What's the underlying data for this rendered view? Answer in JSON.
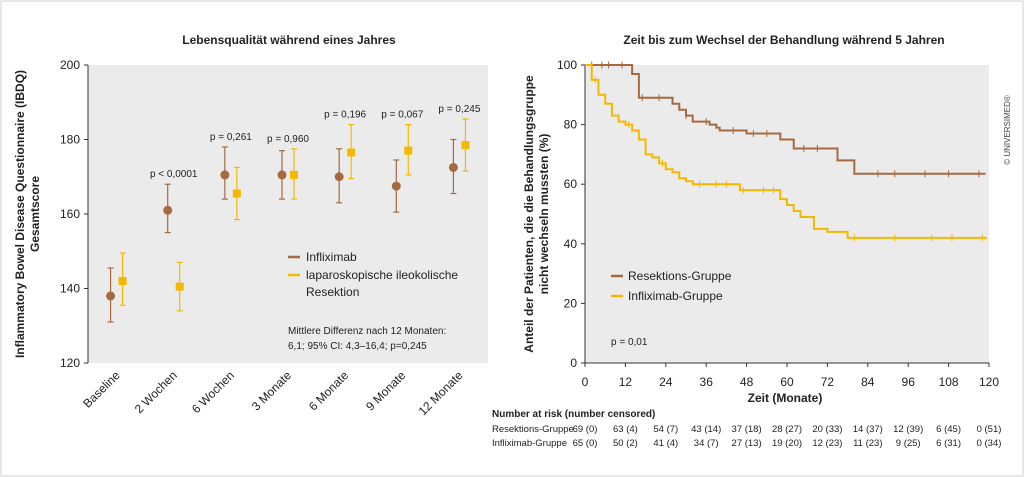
{
  "copyright": "© UNIVERSIMED®",
  "colors": {
    "infliximab": "#a56a3f",
    "resection": "#f5b800",
    "panel_bg": "#ebebeb"
  },
  "chart_data": [
    {
      "type": "scatter",
      "title": "Lebensqualität während eines Jahres",
      "ylabel_line1": "Inflammatory Bowel Disease Questionnaire (IBDQ)",
      "ylabel_line2": "Gesamtscore",
      "ylim": [
        120,
        200
      ],
      "yticks": [
        "120",
        "140",
        "160",
        "180",
        "200"
      ],
      "categories": [
        "Baseline",
        "2 Wochen",
        "6 Wochen",
        "3 Monate",
        "6 Monate",
        "9 Monate",
        "12 Monate"
      ],
      "p_values": [
        "",
        "p < 0,0001",
        "p = 0,261",
        "p = 0,960",
        "p = 0,196",
        "p = 0,067",
        "p = 0,245"
      ],
      "series": [
        {
          "name": "Infliximab",
          "color": "#a56a3f",
          "marker": "circle",
          "values": [
            138,
            161,
            170.5,
            170.5,
            170,
            167.5,
            172.5
          ],
          "lower": [
            131,
            155,
            164,
            164,
            163,
            160.5,
            165.5
          ],
          "upper": [
            145.5,
            168,
            178,
            177,
            177.5,
            174.5,
            180
          ]
        },
        {
          "name": "laparoskopische ileokolische Resektion",
          "name_line1": "laparoskopische ileokolische",
          "name_line2": "Resektion",
          "color": "#f5b800",
          "marker": "square",
          "values": [
            142,
            140.5,
            165.5,
            170.5,
            176.5,
            177,
            178.5
          ],
          "lower": [
            135.5,
            134,
            158.5,
            164,
            169.5,
            170.5,
            171.5
          ],
          "upper": [
            149.5,
            147,
            172.5,
            177.5,
            184,
            184,
            185.5
          ]
        }
      ],
      "note_line1": "Mittlere Differenz nach 12 Monaten:",
      "note_line2": "6,1; 95% CI: 4,3–16,4; p=0,245"
    },
    {
      "type": "line",
      "title": "Zeit bis zum Wechsel der Behandlung während 5 Jahren",
      "ylabel_line1": "Anteil der Patienten, die die Behandlungsgruppe",
      "ylabel_line2": "nicht wechseln mussten (%)",
      "xlabel": "Zeit (Monate)",
      "xlim": [
        0,
        120
      ],
      "ylim": [
        0,
        100
      ],
      "xticks": [
        "0",
        "12",
        "24",
        "36",
        "48",
        "60",
        "72",
        "84",
        "96",
        "108",
        "120"
      ],
      "yticks": [
        "0",
        "20",
        "40",
        "60",
        "80",
        "100"
      ],
      "annotation": "p = 0,01",
      "series": [
        {
          "name": "Resektions-Gruppe",
          "color": "#a56a3f",
          "x": [
            0,
            14,
            16,
            26,
            28,
            30,
            32,
            37,
            39,
            40,
            48,
            58,
            62,
            72,
            75,
            79,
            80,
            119
          ],
          "y": [
            100,
            97,
            89,
            87,
            85,
            83,
            81,
            80,
            79,
            78,
            77,
            75,
            72,
            72,
            68,
            68,
            63.5,
            63.5
          ],
          "censored_x": [
            2,
            5,
            7,
            11,
            17,
            22,
            30,
            36,
            44,
            50,
            54,
            65,
            69,
            87,
            92,
            101,
            108,
            117
          ]
        },
        {
          "name": "Infliximab-Gruppe",
          "color": "#f5b800",
          "x": [
            0,
            2,
            4,
            6,
            8,
            10,
            12,
            14,
            16,
            18,
            20,
            22,
            24,
            26,
            28,
            30,
            32,
            40,
            46,
            52,
            58,
            60,
            62,
            64,
            68,
            72,
            78,
            119
          ],
          "y": [
            100,
            95,
            90,
            87,
            83,
            81,
            80,
            78,
            75,
            70,
            69,
            67,
            65,
            64,
            62,
            61,
            60,
            60,
            58,
            58,
            55,
            53,
            51,
            49,
            45,
            44,
            42,
            41.5
          ],
          "censored_x": [
            3,
            13,
            23,
            34,
            39,
            42,
            47,
            53,
            56,
            80,
            92,
            103,
            109,
            118
          ]
        }
      ],
      "risk_table": {
        "heading": "Number at risk (number censored)",
        "rows": [
          {
            "label": "Resektions-Gruppe",
            "values": [
              "69 (0)",
              "63 (4)",
              "54 (7)",
              "43 (14)",
              "37 (18)",
              "28 (27)",
              "20 (33)",
              "14 (37)",
              "12 (39)",
              "6 (45)",
              "0 (51)"
            ]
          },
          {
            "label": "Infliximab-Gruppe",
            "values": [
              "65 (0)",
              "50 (2)",
              "41 (4)",
              "34 (7)",
              "27 (13)",
              "19 (20)",
              "12 (23)",
              "11 (23)",
              "9 (25)",
              "6 (31)",
              "0 (34)"
            ]
          }
        ]
      }
    }
  ]
}
